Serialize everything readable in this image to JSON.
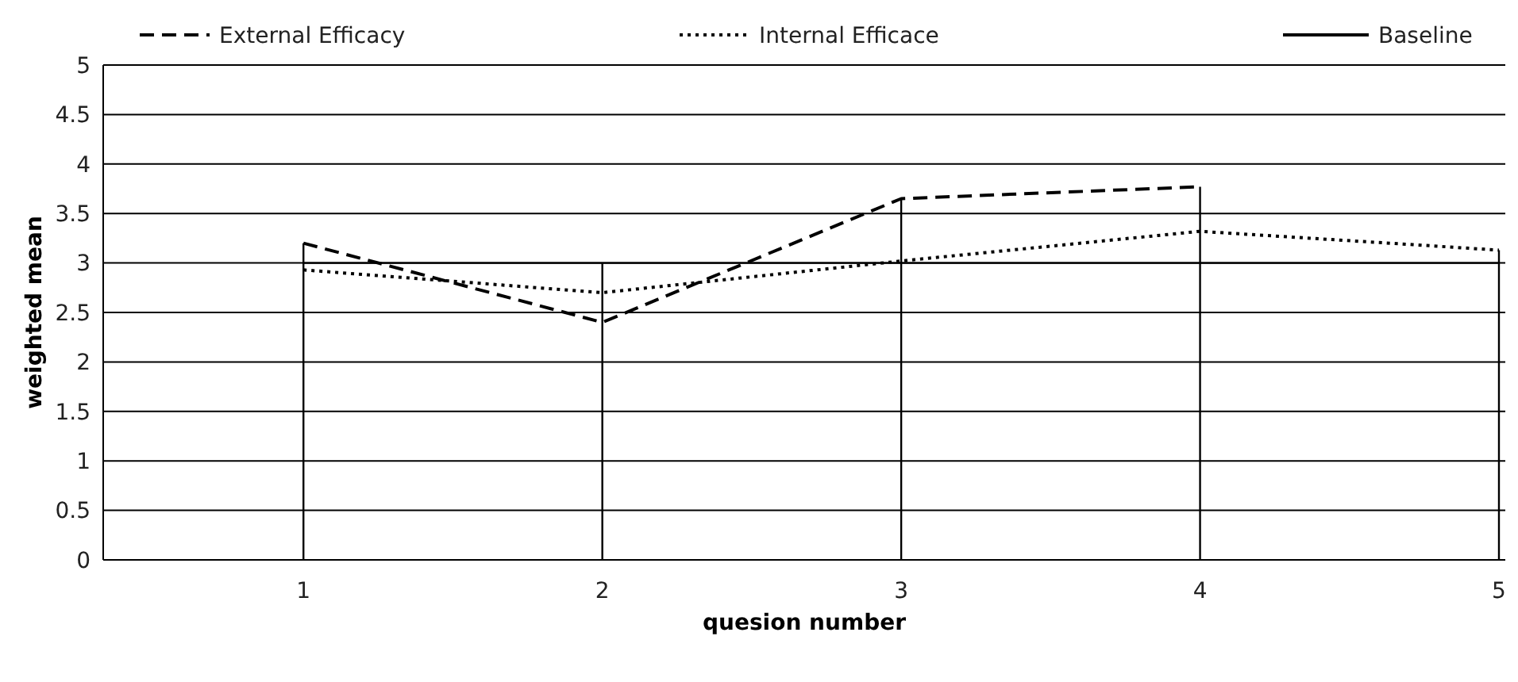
{
  "chart_data": {
    "type": "line",
    "xlabel": "quesion number",
    "ylabel": "weighted mean",
    "x": [
      1,
      2,
      3,
      4,
      5
    ],
    "xlim": [
      0.33,
      5
    ],
    "xticks": [
      1,
      2,
      3,
      4,
      5
    ],
    "ylim": [
      0,
      5
    ],
    "yticks": [
      0,
      0.5,
      1,
      1.5,
      2,
      2.5,
      3,
      3.5,
      4,
      4.5,
      5
    ],
    "grid": "y",
    "legend": "top",
    "marker": "none",
    "series": [
      {
        "color": "#000000",
        "line_style": "solid",
        "x": [
          1,
          1
        ],
        "values": [
          0,
          3.2
        ]
      },
      {
        "color": "#000000",
        "line_style": "solid",
        "x": [
          2,
          2
        ],
        "values": [
          0,
          3
        ]
      },
      {
        "color": "#000000",
        "line_style": "solid",
        "x": [
          3,
          3
        ],
        "values": [
          0,
          3.65
        ]
      },
      {
        "color": "#000000",
        "line_style": "solid",
        "x": [
          4,
          4
        ],
        "values": [
          0,
          3.77
        ]
      },
      {
        "color": "#000000",
        "line_style": "solid",
        "x": [
          5,
          5
        ],
        "values": [
          0,
          3.13
        ]
      },
      {
        "name": "External Efficacy",
        "color": "#000000",
        "line_style": "dashed",
        "values": [
          3.2,
          2.4,
          3.65,
          3.77,
          null
        ]
      },
      {
        "name": "Internal Efficace",
        "color": "#000000",
        "line_style": "dotted",
        "values": [
          2.93,
          2.7,
          3.02,
          3.32,
          3.13
        ]
      },
      {
        "name": "Baseline",
        "color": "#000000",
        "line_style": "solid",
        "values": [
          3,
          3,
          3,
          3,
          3
        ]
      }
    ]
  }
}
